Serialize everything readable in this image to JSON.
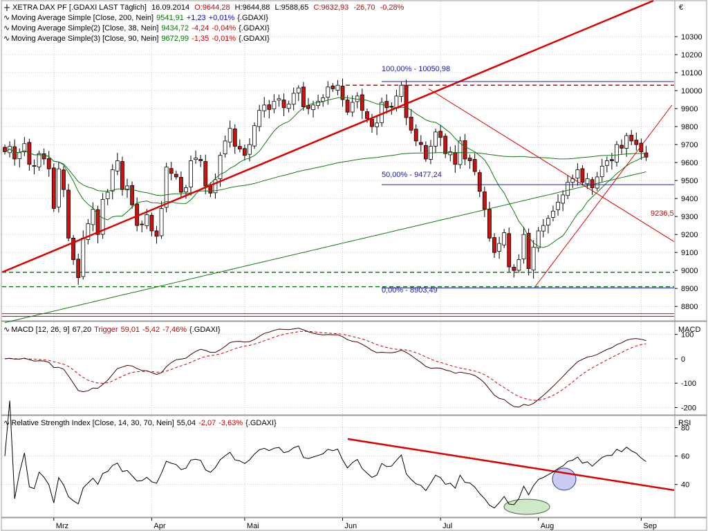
{
  "currency_symbol": "€",
  "colors": {
    "up_candle": "#ffffff",
    "down_candle": "#cc1111",
    "ma200": "#117711",
    "ma38": "#117711",
    "ma90": "#117711",
    "trend_red": "#dd0000",
    "fib_blue": "#1a1aaa",
    "support_green": "#117711",
    "macd_line": "#400000",
    "trigger_line": "#cc0000",
    "rsi_line": "#000000",
    "value_green": "#007700",
    "value_red": "#cc0000",
    "value_blue": "#0000cc"
  },
  "legend": {
    "main_icon_label": "XETRA DAX PF [.GDAXI LAST Täglich]",
    "date": "16.09.2014",
    "ohlc": [
      {
        "label": "O:",
        "value": "9644,28",
        "color": "red"
      },
      {
        "label": "H:",
        "value": "9644,88",
        "color": "black"
      },
      {
        "label": "L:",
        "value": "9588,65",
        "color": "black"
      },
      {
        "label": "C:",
        "value": "9632,93",
        "color": "red"
      },
      {
        "label": "",
        "value": "-26,70",
        "color": "red"
      },
      {
        "label": "",
        "value": "-0,28%",
        "color": "red"
      }
    ],
    "indicators": [
      {
        "name": "Moving Average Simple [Close, 200, Nein]",
        "value": "9541,91",
        "change": "+1,23",
        "pct": "+0,01%",
        "sym": "{.GDAXI}",
        "value_color": "green",
        "change_color": "blue"
      },
      {
        "name": "Moving Average Simple(2) [Close, 38, Nein]",
        "value": "9434,72",
        "change": "-4,24",
        "pct": "-0,04%",
        "sym": "{.GDAXI}",
        "value_color": "green",
        "change_color": "red"
      },
      {
        "name": "Moving Average Simple(3) [Close, 90, Nein]",
        "value": "9672,99",
        "change": "-1,35",
        "pct": "-0,01%",
        "sym": "{.GDAXI}",
        "value_color": "green",
        "change_color": "red"
      }
    ]
  },
  "macd_legend": {
    "name": "MACD [12, 26, 9]",
    "value": "67,20",
    "trigger_label": "Trigger",
    "trigger": "59,01",
    "change": "-5,42",
    "pct": "-7,46%",
    "sym": "{.GDAXI}"
  },
  "rsi_legend": {
    "name": "Relative Strength Index [Close, 14, 30, 70, Nein]",
    "value": "55,04",
    "change": "-2,07",
    "pct": "-3,63%",
    "sym": "{.GDAXI}"
  },
  "axis_titles": {
    "macd": "MACD",
    "rsi": "RSI"
  },
  "annotations": {
    "fib_100": "100,00% - 10050,98",
    "fib_50": "50,00% - 9477,24",
    "fib_0": "0,00% - 8903,49",
    "target": "9236,5"
  },
  "chart_data": [
    {
      "type": "candlestick",
      "title": "XETRA DAX PF [.GDAXI LAST Täglich]",
      "ylim": [
        8720,
        10500
      ],
      "y_ticks": [
        8800,
        8900,
        9000,
        9100,
        9200,
        9300,
        9400,
        9500,
        9600,
        9700,
        9800,
        9900,
        10000,
        10100,
        10200,
        10300
      ],
      "x_month_labels": [
        "Mrz",
        "Apr",
        "Mai",
        "Jun",
        "Jul",
        "Aug",
        "Sep"
      ],
      "x_month_index": [
        10,
        30,
        49,
        69,
        89,
        109,
        130
      ],
      "closes": [
        9660,
        9690,
        9620,
        9655,
        9705,
        9590,
        9580,
        9650,
        9620,
        9565,
        9345,
        9565,
        9450,
        9180,
        9060,
        8960,
        9180,
        9260,
        9340,
        9200,
        9395,
        9435,
        9560,
        9610,
        9450,
        9470,
        9365,
        9250,
        9255,
        9310,
        9220,
        9190,
        9345,
        9575,
        9540,
        9520,
        9435,
        9460,
        9610,
        9625,
        9610,
        9470,
        9430,
        9505,
        9640,
        9720,
        9790,
        9690,
        9675,
        9640,
        9700,
        9805,
        9890,
        9920,
        9895,
        9940,
        9955,
        9905,
        9925,
        9985,
        10015,
        9910,
        9900,
        9920,
        9940,
        9960,
        10020,
        10010,
        10030,
        9950,
        9880,
        9935,
        9970,
        9890,
        9845,
        9800,
        9820,
        9935,
        9905,
        9910,
        9970,
        10030,
        9850,
        9780,
        9720,
        9700,
        9620,
        9690,
        9770,
        9740,
        9650,
        9660,
        9590,
        9720,
        9620,
        9610,
        9550,
        9440,
        9340,
        9180,
        9100,
        9150,
        9210,
        9020,
        9000,
        9060,
        9200,
        9010,
        9130,
        9220,
        9250,
        9290,
        9330,
        9380,
        9420,
        9490,
        9510,
        9560,
        9490,
        9510,
        9460,
        9520,
        9580,
        9610,
        9610,
        9700,
        9680,
        9750,
        9720,
        9700,
        9660,
        9630
      ],
      "markup_lines": [
        "uptrend from early March",
        "down trendline from July high",
        "up trendline from August low",
        "dashed support at 8990 and 8910",
        "dashed resistance at 10030",
        "fibonacci retracement 0 / 50 / 100 %"
      ]
    },
    {
      "type": "line",
      "title": "MACD [12, 26, 9]",
      "ylim": [
        -230,
        150
      ],
      "y_ticks": [
        100,
        0,
        -100,
        -200
      ],
      "series": [
        {
          "name": "MACD",
          "role": "macd"
        },
        {
          "name": "Trigger",
          "role": "trigger"
        }
      ]
    },
    {
      "type": "line",
      "title": "Relative Strength Index [Close, 14, 30, 70, Nein]",
      "ylim": [
        17,
        88
      ],
      "y_ticks": [
        80,
        60,
        40
      ],
      "series": [
        {
          "name": "RSI",
          "role": "rsi"
        }
      ]
    }
  ]
}
